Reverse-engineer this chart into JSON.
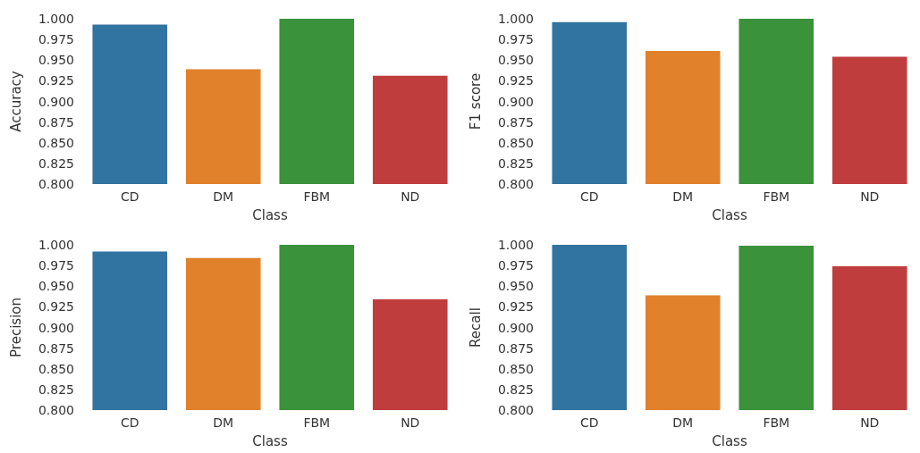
{
  "chart_data": [
    {
      "type": "bar",
      "xlabel": "Class",
      "ylabel": "Accuracy",
      "categories": [
        "CD",
        "DM",
        "FBM",
        "ND"
      ],
      "values": [
        0.993,
        0.939,
        1.0,
        0.931
      ],
      "colors": [
        "#3274a1",
        "#e1812c",
        "#3a923a",
        "#c03d3e"
      ],
      "ylim": [
        0.8,
        1.0
      ],
      "yticks": [
        {
          "value": 0.8,
          "label": "0.800"
        },
        {
          "value": 0.825,
          "label": "0.825"
        },
        {
          "value": 0.85,
          "label": "0.850"
        },
        {
          "value": 0.875,
          "label": "0.875"
        },
        {
          "value": 0.9,
          "label": "0.900"
        },
        {
          "value": 0.925,
          "label": "0.925"
        },
        {
          "value": 0.95,
          "label": "0.950"
        },
        {
          "value": 0.975,
          "label": "0.975"
        },
        {
          "value": 1.0,
          "label": "1.000"
        }
      ],
      "grid": false
    },
    {
      "type": "bar",
      "xlabel": "Class",
      "ylabel": "F1 score",
      "categories": [
        "CD",
        "DM",
        "FBM",
        "ND"
      ],
      "values": [
        0.996,
        0.961,
        1.0,
        0.954
      ],
      "colors": [
        "#3274a1",
        "#e1812c",
        "#3a923a",
        "#c03d3e"
      ],
      "ylim": [
        0.8,
        1.0
      ],
      "yticks": [
        {
          "value": 0.8,
          "label": "0.800"
        },
        {
          "value": 0.825,
          "label": "0.825"
        },
        {
          "value": 0.85,
          "label": "0.850"
        },
        {
          "value": 0.875,
          "label": "0.875"
        },
        {
          "value": 0.9,
          "label": "0.900"
        },
        {
          "value": 0.925,
          "label": "0.925"
        },
        {
          "value": 0.95,
          "label": "0.950"
        },
        {
          "value": 0.975,
          "label": "0.975"
        },
        {
          "value": 1.0,
          "label": "1.000"
        }
      ],
      "grid": false
    },
    {
      "type": "bar",
      "xlabel": "Class",
      "ylabel": "Precision",
      "categories": [
        "CD",
        "DM",
        "FBM",
        "ND"
      ],
      "values": [
        0.992,
        0.984,
        1.0,
        0.934
      ],
      "colors": [
        "#3274a1",
        "#e1812c",
        "#3a923a",
        "#c03d3e"
      ],
      "ylim": [
        0.8,
        1.0
      ],
      "yticks": [
        {
          "value": 0.8,
          "label": "0.800"
        },
        {
          "value": 0.825,
          "label": "0.825"
        },
        {
          "value": 0.85,
          "label": "0.850"
        },
        {
          "value": 0.875,
          "label": "0.875"
        },
        {
          "value": 0.9,
          "label": "0.900"
        },
        {
          "value": 0.925,
          "label": "0.925"
        },
        {
          "value": 0.95,
          "label": "0.950"
        },
        {
          "value": 0.975,
          "label": "0.975"
        },
        {
          "value": 1.0,
          "label": "1.000"
        }
      ],
      "grid": false
    },
    {
      "type": "bar",
      "xlabel": "Class",
      "ylabel": "Recall",
      "categories": [
        "CD",
        "DM",
        "FBM",
        "ND"
      ],
      "values": [
        1.0,
        0.939,
        0.999,
        0.974
      ],
      "colors": [
        "#3274a1",
        "#e1812c",
        "#3a923a",
        "#c03d3e"
      ],
      "ylim": [
        0.8,
        1.0
      ],
      "yticks": [
        {
          "value": 0.8,
          "label": "0.800"
        },
        {
          "value": 0.825,
          "label": "0.825"
        },
        {
          "value": 0.85,
          "label": "0.850"
        },
        {
          "value": 0.875,
          "label": "0.875"
        },
        {
          "value": 0.9,
          "label": "0.900"
        },
        {
          "value": 0.925,
          "label": "0.925"
        },
        {
          "value": 0.95,
          "label": "0.950"
        },
        {
          "value": 0.975,
          "label": "0.975"
        },
        {
          "value": 1.0,
          "label": "1.000"
        }
      ],
      "grid": false
    }
  ]
}
